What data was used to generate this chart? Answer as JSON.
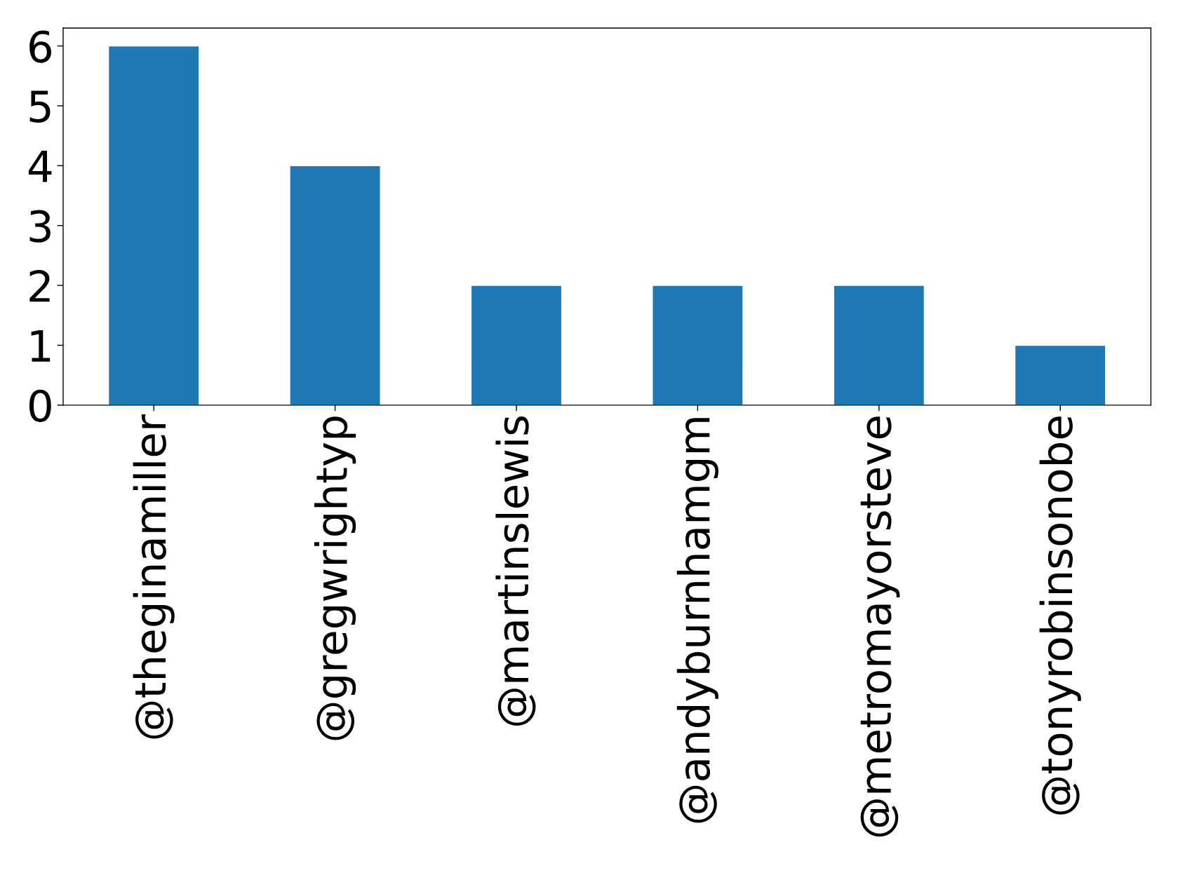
{
  "chart_data": {
    "type": "bar",
    "categories": [
      "@theginamiller",
      "@gregwrightyp",
      "@martinslewis",
      "@andyburnhamgm",
      "@metromayorsteve",
      "@tonyrobinsonobe"
    ],
    "values": [
      6,
      4,
      2,
      2,
      2,
      1
    ],
    "color": "#1f77b4",
    "ylim": [
      0,
      6.3
    ],
    "yticks": [
      0,
      1,
      2,
      3,
      4,
      5,
      6
    ],
    "grid": false
  }
}
